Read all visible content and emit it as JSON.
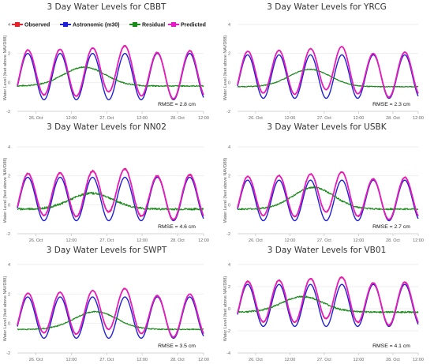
{
  "legend": [
    {
      "label": "Observed",
      "color": "#e8202a"
    },
    {
      "label": "Astronomic (m30)",
      "color": "#1f1fd6"
    },
    {
      "label": "Residual",
      "color": "#1a8a1a"
    },
    {
      "label": "Predicted",
      "color": "#e81ac8"
    }
  ],
  "chart_data": [
    {
      "type": "line",
      "title": "3 Day Water Levels for CBBT",
      "ylabel": "Water Level (feet above NAVD88)",
      "ylim": [
        -2,
        4
      ],
      "yticks": [
        "-2",
        "0",
        "2",
        "4"
      ],
      "xticks": [
        "26. Oct",
        "12:00",
        "27. Oct",
        "12:00",
        "28. Oct",
        "12:00"
      ],
      "rmse": "RMSE = 2.8 cm",
      "tide_amplitude": 1.6,
      "tide_offset": 0.4,
      "pred_boost": 0.45,
      "resid_base": -0.25,
      "resid_peak": 1.3,
      "resid_peak_t": 0.36,
      "noise": 0.08,
      "grid": true,
      "legend_position": "top"
    },
    {
      "type": "line",
      "title": "3 Day Water Levels for YRCG",
      "ylabel": "Water Level (feet above NAVD88)",
      "ylim": [
        -2,
        4
      ],
      "yticks": [
        "-2",
        "0",
        "2",
        "4"
      ],
      "xticks": [
        "26. Oct",
        "12:00",
        "27. Oct",
        "12:00",
        "28. Oct",
        "12:00"
      ],
      "rmse": "RMSE = 2.3 cm",
      "tide_amplitude": 1.5,
      "tide_offset": 0.4,
      "pred_boost": 0.5,
      "resid_base": -0.3,
      "resid_peak": 1.2,
      "resid_peak_t": 0.4,
      "noise": 0.05,
      "grid": true
    },
    {
      "type": "line",
      "title": "3 Day Water Levels for NN02",
      "ylabel": "Water Level (feet above NAVD88)",
      "ylim": [
        -2,
        4
      ],
      "yticks": [
        "-2",
        "0",
        "2",
        "4"
      ],
      "xticks": [
        "26. Oct",
        "12:00",
        "27. Oct",
        "12:00",
        "28. Oct",
        "12:00"
      ],
      "rmse": "RMSE = 4.6 cm",
      "tide_amplitude": 1.5,
      "tide_offset": 0.4,
      "pred_boost": 0.5,
      "resid_base": -0.3,
      "resid_peak": 1.1,
      "resid_peak_t": 0.4,
      "noise": 0.14,
      "grid": true
    },
    {
      "type": "line",
      "title": "3 Day Water Levels for USBK",
      "ylabel": "Water Level (feet above NAVD88)",
      "ylim": [
        -2,
        4
      ],
      "yticks": [
        "-2",
        "0",
        "2",
        "4"
      ],
      "xticks": [
        "26. Oct",
        "12:00",
        "27. Oct",
        "12:00",
        "28. Oct",
        "12:00"
      ],
      "rmse": "RMSE = 2.7 cm",
      "tide_amplitude": 1.4,
      "tide_offset": 0.3,
      "pred_boost": 0.5,
      "resid_base": -0.3,
      "resid_peak": 1.5,
      "resid_peak_t": 0.42,
      "noise": 0.1,
      "grid": true
    },
    {
      "type": "line",
      "title": "3 Day Water Levels for SWPT",
      "ylabel": "Water Level (feet above NAVD88)",
      "ylim": [
        -2,
        4
      ],
      "yticks": [
        "-2",
        "0",
        "2",
        "4"
      ],
      "xticks": [
        "26. Oct",
        "12:00",
        "27. Oct",
        "12:00",
        "28. Oct",
        "12:00"
      ],
      "rmse": "RMSE = 3.5 cm",
      "tide_amplitude": 1.4,
      "tide_offset": 0.4,
      "pred_boost": 0.5,
      "resid_base": -0.4,
      "resid_peak": 1.2,
      "resid_peak_t": 0.42,
      "noise": 0.07,
      "grid": true
    },
    {
      "type": "line",
      "title": "3 Day Water Levels for VB01",
      "ylabel": "Water Level (feet above NAVD88)",
      "ylim": [
        -4,
        4
      ],
      "yticks": [
        "-4",
        "-2",
        "0",
        "2",
        "4"
      ],
      "xticks": [
        "26. Oct",
        "12:00",
        "27. Oct",
        "12:00",
        "28. Oct",
        "12:00"
      ],
      "rmse": "RMSE = 4.1 cm",
      "tide_amplitude": 1.9,
      "tide_offset": 0.3,
      "pred_boost": 0.6,
      "resid_base": -0.3,
      "resid_peak": 1.4,
      "resid_peak_t": 0.36,
      "noise": 0.14,
      "grid": true
    }
  ]
}
